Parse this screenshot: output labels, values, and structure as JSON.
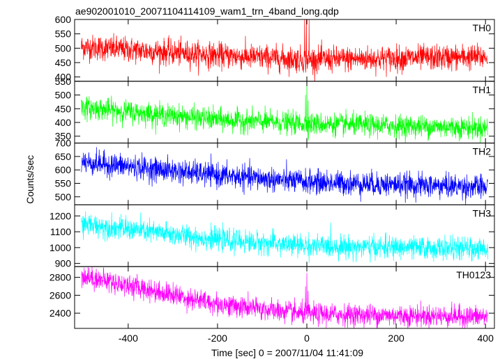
{
  "chart_data": {
    "type": "line",
    "title": "ae902001010_20071104114109_wam1_trn_4band_long.qdp",
    "xlabel": "Time [sec] 0 = 2007/11/04 11:41:09",
    "ylabel": "Counts/sec",
    "xlim": [
      -520,
      420
    ],
    "xticks": [
      -400,
      -200,
      0,
      200,
      400
    ],
    "x_range_data": [
      -505,
      405
    ],
    "series": [
      {
        "name": "TH0",
        "color": "#ff0000",
        "ylim": [
          385,
          600
        ],
        "yticks": [
          400,
          450,
          500,
          550,
          600
        ],
        "trend": [
          [
            -505,
            505
          ],
          [
            -200,
            475
          ],
          [
            0,
            460
          ],
          [
            405,
            470
          ]
        ],
        "noise_sd": 22,
        "spikes": [
          [
            -5,
            610
          ],
          [
            5,
            600
          ],
          [
            -1,
            605
          ]
        ]
      },
      {
        "name": "TH1",
        "color": "#00ff00",
        "ylim": [
          325,
          550
        ],
        "yticks": [
          350,
          400,
          450,
          500,
          550
        ],
        "trend": [
          [
            -505,
            455
          ],
          [
            -200,
            410
          ],
          [
            0,
            395
          ],
          [
            405,
            380
          ]
        ],
        "noise_sd": 20,
        "spikes": [
          [
            0,
            550
          ],
          [
            -3,
            500
          ],
          [
            3,
            480
          ]
        ]
      },
      {
        "name": "TH2",
        "color": "#0000ff",
        "ylim": [
          470,
          700
        ],
        "yticks": [
          500,
          550,
          600,
          650,
          700
        ],
        "trend": [
          [
            -505,
            630
          ],
          [
            -200,
            580
          ],
          [
            0,
            555
          ],
          [
            405,
            535
          ]
        ],
        "noise_sd": 22,
        "spikes": []
      },
      {
        "name": "TH3",
        "color": "#00ffff",
        "ylim": [
          880,
          1270
        ],
        "yticks": [
          900,
          1000,
          1100,
          1200
        ],
        "trend": [
          [
            -505,
            1150
          ],
          [
            -200,
            1050
          ],
          [
            0,
            1010
          ],
          [
            405,
            990
          ]
        ],
        "noise_sd": 35,
        "spikes": []
      },
      {
        "name": "TH0123",
        "color": "#ff00ff",
        "ylim": [
          2230,
          2920
        ],
        "yticks": [
          2400,
          2600,
          2800
        ],
        "trend": [
          [
            -505,
            2820
          ],
          [
            -200,
            2500
          ],
          [
            0,
            2390
          ],
          [
            405,
            2360
          ]
        ],
        "noise_sd": 60,
        "spikes": [
          [
            0,
            2850
          ],
          [
            -3,
            2700
          ],
          [
            3,
            2650
          ]
        ]
      }
    ]
  }
}
